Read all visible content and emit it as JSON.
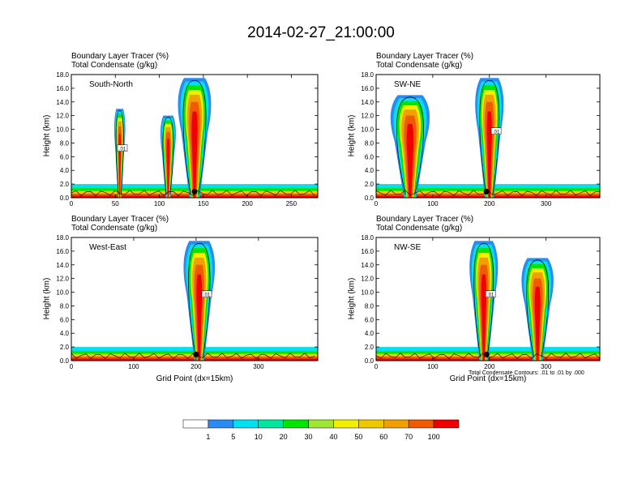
{
  "title": "2014-02-27_21:00:00",
  "panel_title_line1": "Boundary Layer Tracer   (%)",
  "panel_title_line2": "Total Condensate   (g/kg)",
  "ylabel": "Height (km)",
  "xlabel": "Grid Point (dx=15km)",
  "footnote": "Total Condensate Contours: .01 to .01 by .000",
  "contour_label": ".01",
  "colors": {
    "scale": [
      "#ffffff",
      "#2a8cf2",
      "#00e0f0",
      "#00e6a0",
      "#00e600",
      "#a0e632",
      "#f0f000",
      "#f0c800",
      "#f0a000",
      "#f05a00",
      "#f00000"
    ]
  },
  "chart_data": [
    {
      "type": "heatmap",
      "cross_section": "South-North",
      "xlim": [
        0,
        280
      ],
      "xticks": [
        0,
        50,
        100,
        150,
        200,
        250
      ],
      "ylim": [
        0,
        18
      ],
      "yticks": [
        "0.0",
        "2.0",
        "4.0",
        "6.0",
        "8.0",
        "10.0",
        "12.0",
        "14.0",
        "16.0",
        "18.0"
      ],
      "marker_x": 140,
      "plumes": [
        {
          "x": 55,
          "width": 10,
          "top": 13
        },
        {
          "x": 140,
          "width": 30,
          "top": 17.5
        },
        {
          "x": 110,
          "width": 14,
          "top": 12
        }
      ]
    },
    {
      "type": "heatmap",
      "cross_section": "SW-NE",
      "xlim": [
        0,
        395
      ],
      "xticks": [
        0,
        100,
        200,
        300
      ],
      "ylim": [
        0,
        18
      ],
      "yticks": [
        "0.0",
        "2.0",
        "4.0",
        "6.0",
        "8.0",
        "10.0",
        "12.0",
        "14.0",
        "16.0",
        "18.0"
      ],
      "marker_x": 195,
      "plumes": [
        {
          "x": 200,
          "width": 40,
          "top": 17.5
        },
        {
          "x": 60,
          "width": 55,
          "top": 15
        }
      ]
    },
    {
      "type": "heatmap",
      "cross_section": "West-East",
      "xlim": [
        0,
        395
      ],
      "xticks": [
        0,
        100,
        200,
        300
      ],
      "ylim": [
        0,
        18
      ],
      "yticks": [
        "0.0",
        "2.0",
        "4.0",
        "6.0",
        "8.0",
        "10.0",
        "12.0",
        "14.0",
        "16.0",
        "18.0"
      ],
      "marker_x": 200,
      "plumes": [
        {
          "x": 205,
          "width": 40,
          "top": 17.5
        }
      ]
    },
    {
      "type": "heatmap",
      "cross_section": "NW-SE",
      "xlim": [
        0,
        395
      ],
      "xticks": [
        0,
        100,
        200,
        300
      ],
      "ylim": [
        0,
        18
      ],
      "yticks": [
        "0.0",
        "2.0",
        "4.0",
        "6.0",
        "8.0",
        "10.0",
        "12.0",
        "14.0",
        "16.0",
        "18.0"
      ],
      "marker_x": 195,
      "plumes": [
        {
          "x": 190,
          "width": 40,
          "top": 17.5
        },
        {
          "x": 285,
          "width": 45,
          "top": 15
        }
      ]
    }
  ],
  "colorbar": {
    "labels": [
      "1",
      "5",
      "10",
      "20",
      "30",
      "40",
      "50",
      "60",
      "70",
      "100"
    ]
  }
}
